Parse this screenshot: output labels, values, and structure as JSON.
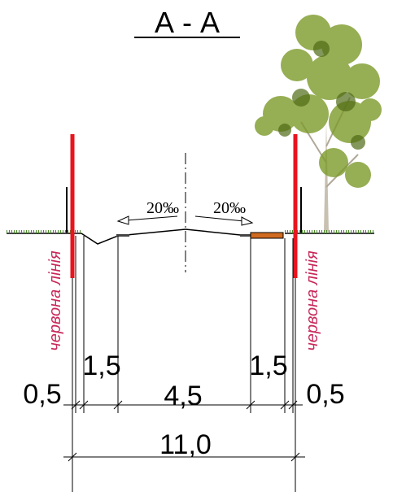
{
  "title": "А - А",
  "slopes": [
    "20‰",
    "20‰"
  ],
  "red_line_labels": [
    "червона лінія",
    "червона лінія"
  ],
  "dimensions": [
    "0,5",
    "1,5",
    "4,5",
    "1,5",
    "0,5"
  ],
  "total": "11,0"
}
